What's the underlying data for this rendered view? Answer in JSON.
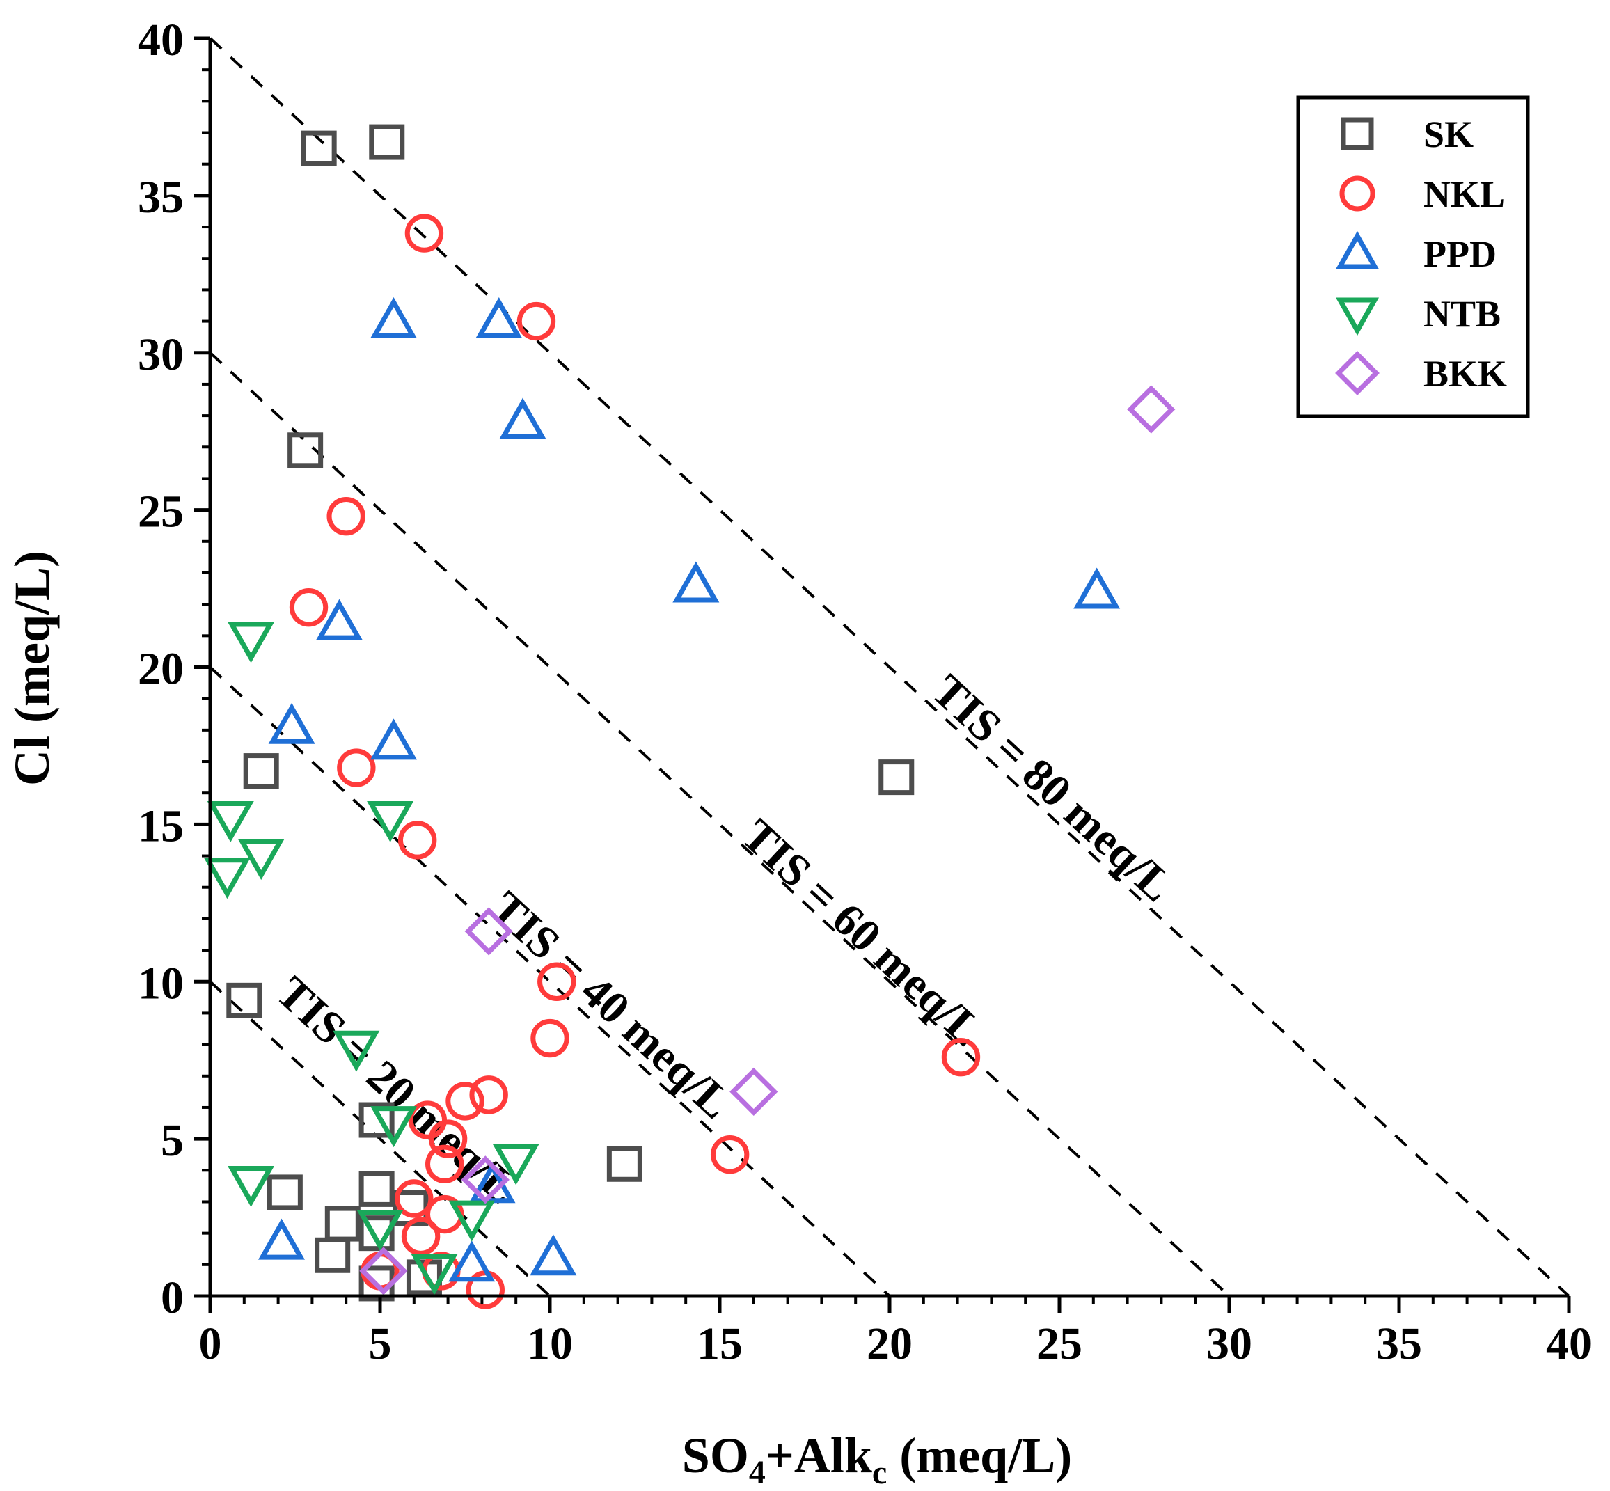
{
  "chart_data": {
    "type": "scatter",
    "title": "",
    "xlabel": "SO4+Alkc (meq/L)",
    "xlabel_parts": {
      "main": "SO",
      "sub1": "4",
      "mid": "+Alk",
      "sub2": "c",
      "tail": " (meq/L)"
    },
    "ylabel": "Cl (meq/L)",
    "xlim": [
      0,
      40
    ],
    "ylim": [
      0,
      40
    ],
    "xticks": [
      0,
      5,
      10,
      15,
      20,
      25,
      30,
      35,
      40
    ],
    "yticks": [
      0,
      5,
      10,
      15,
      20,
      25,
      30,
      35,
      40
    ],
    "minor_step": 1,
    "legend_position": "top-right",
    "reference_lines": [
      {
        "label": "TIS = 20 meq/L",
        "intercept": 10
      },
      {
        "label": "TIS = 40 meq/L",
        "intercept": 20
      },
      {
        "label": "TIS = 60 meq/L",
        "intercept": 30
      },
      {
        "label": "TIS = 80 meq/L",
        "intercept": 40
      }
    ],
    "series": [
      {
        "name": "SK",
        "marker": "square",
        "color": "#4d4d4d",
        "points": [
          [
            3.2,
            36.5
          ],
          [
            5.2,
            36.7
          ],
          [
            2.8,
            26.9
          ],
          [
            1.5,
            16.7
          ],
          [
            20.2,
            16.5
          ],
          [
            1.0,
            9.4
          ],
          [
            4.9,
            5.6
          ],
          [
            12.2,
            4.2
          ],
          [
            2.2,
            3.3
          ],
          [
            4.9,
            3.4
          ],
          [
            3.9,
            2.3
          ],
          [
            5.9,
            2.8
          ],
          [
            3.6,
            1.3
          ],
          [
            4.9,
            2.0
          ],
          [
            6.3,
            0.6
          ],
          [
            4.9,
            0.4
          ]
        ]
      },
      {
        "name": "NKL",
        "marker": "circle",
        "color": "#ff3b3b",
        "points": [
          [
            6.3,
            33.8
          ],
          [
            9.6,
            31.0
          ],
          [
            4.0,
            24.8
          ],
          [
            2.9,
            21.9
          ],
          [
            4.3,
            16.8
          ],
          [
            6.1,
            14.5
          ],
          [
            10.2,
            10.0
          ],
          [
            10.0,
            8.2
          ],
          [
            22.1,
            7.6
          ],
          [
            6.4,
            5.6
          ],
          [
            7.5,
            6.2
          ],
          [
            8.2,
            6.4
          ],
          [
            7.0,
            5.0
          ],
          [
            6.9,
            4.2
          ],
          [
            15.3,
            4.5
          ],
          [
            6.0,
            3.1
          ],
          [
            6.9,
            2.6
          ],
          [
            6.2,
            1.9
          ],
          [
            5.0,
            0.8
          ],
          [
            6.8,
            0.8
          ],
          [
            8.1,
            0.2
          ]
        ]
      },
      {
        "name": "PPD",
        "marker": "triangle-up",
        "color": "#1f6fd6",
        "points": [
          [
            5.4,
            31.0
          ],
          [
            8.5,
            31.0
          ],
          [
            9.2,
            27.8
          ],
          [
            14.3,
            22.6
          ],
          [
            26.1,
            22.4
          ],
          [
            3.8,
            21.4
          ],
          [
            2.4,
            18.1
          ],
          [
            5.4,
            17.6
          ],
          [
            8.3,
            3.5
          ],
          [
            2.1,
            1.7
          ],
          [
            7.7,
            1.0
          ],
          [
            10.1,
            1.2
          ]
        ]
      },
      {
        "name": "NTB",
        "marker": "triangle-down",
        "color": "#1aa85a",
        "points": [
          [
            1.2,
            20.9
          ],
          [
            0.6,
            15.2
          ],
          [
            1.5,
            14.0
          ],
          [
            0.5,
            13.4
          ],
          [
            5.3,
            15.2
          ],
          [
            4.3,
            7.9
          ],
          [
            5.4,
            5.5
          ],
          [
            9.0,
            4.3
          ],
          [
            1.2,
            3.6
          ],
          [
            5.0,
            2.2
          ],
          [
            7.7,
            2.5
          ],
          [
            6.6,
            0.8
          ]
        ]
      },
      {
        "name": "BKK",
        "marker": "diamond",
        "color": "#b86fe0",
        "points": [
          [
            27.7,
            28.2
          ],
          [
            8.2,
            11.6
          ],
          [
            16.0,
            6.5
          ],
          [
            8.1,
            3.7
          ],
          [
            5.1,
            0.8
          ]
        ]
      }
    ]
  }
}
